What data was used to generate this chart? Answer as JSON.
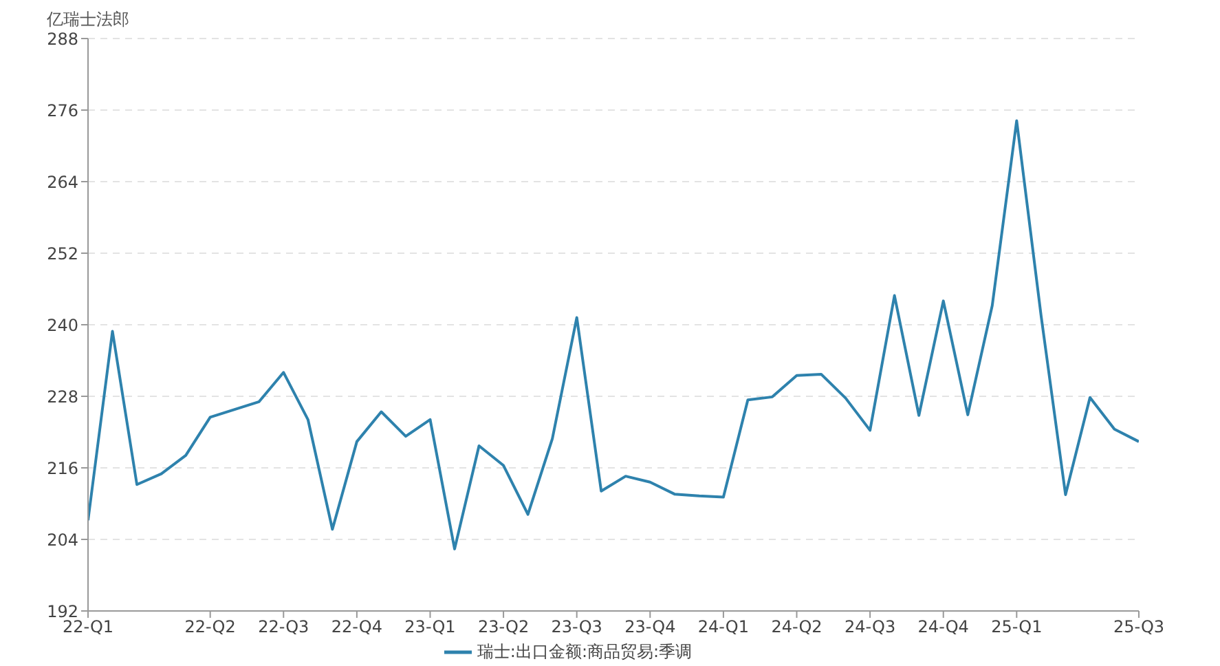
{
  "chart_data": {
    "type": "line",
    "ylabel": "亿瑞士法郎",
    "categories": [
      "22-Q1",
      null,
      null,
      null,
      null,
      "22-Q2",
      null,
      null,
      "22-Q3",
      null,
      null,
      "22-Q4",
      null,
      null,
      "23-Q1",
      null,
      null,
      "23-Q2",
      null,
      null,
      "23-Q3",
      null,
      null,
      "23-Q4",
      null,
      null,
      "24-Q1",
      null,
      null,
      "24-Q2",
      null,
      null,
      "24-Q3",
      null,
      null,
      "24-Q4",
      null,
      null,
      "25-Q1",
      null,
      null,
      null,
      null,
      "25-Q3"
    ],
    "series": [
      {
        "name": "瑞士:出口金额:商品贸易:季调",
        "color": "#2e82ad",
        "values": [
          207.2,
          238.9,
          213.2,
          215.0,
          218.1,
          224.5,
          225.8,
          227.1,
          232.0,
          224.1,
          205.7,
          220.4,
          225.4,
          221.3,
          224.1,
          202.4,
          219.7,
          216.4,
          208.2,
          220.9,
          241.2,
          212.1,
          214.6,
          213.6,
          211.6,
          211.3,
          211.1,
          227.4,
          227.9,
          231.5,
          231.7,
          227.7,
          222.3,
          244.9,
          224.8,
          244.0,
          224.9,
          243.2,
          274.2,
          241.5,
          211.5,
          227.8,
          222.5,
          220.4
        ]
      }
    ],
    "ylim": [
      192,
      288
    ],
    "yticks": [
      192,
      204,
      216,
      228,
      240,
      252,
      264,
      276,
      288
    ],
    "grid": "y",
    "legend": "bottom",
    "line_style": "solid"
  }
}
